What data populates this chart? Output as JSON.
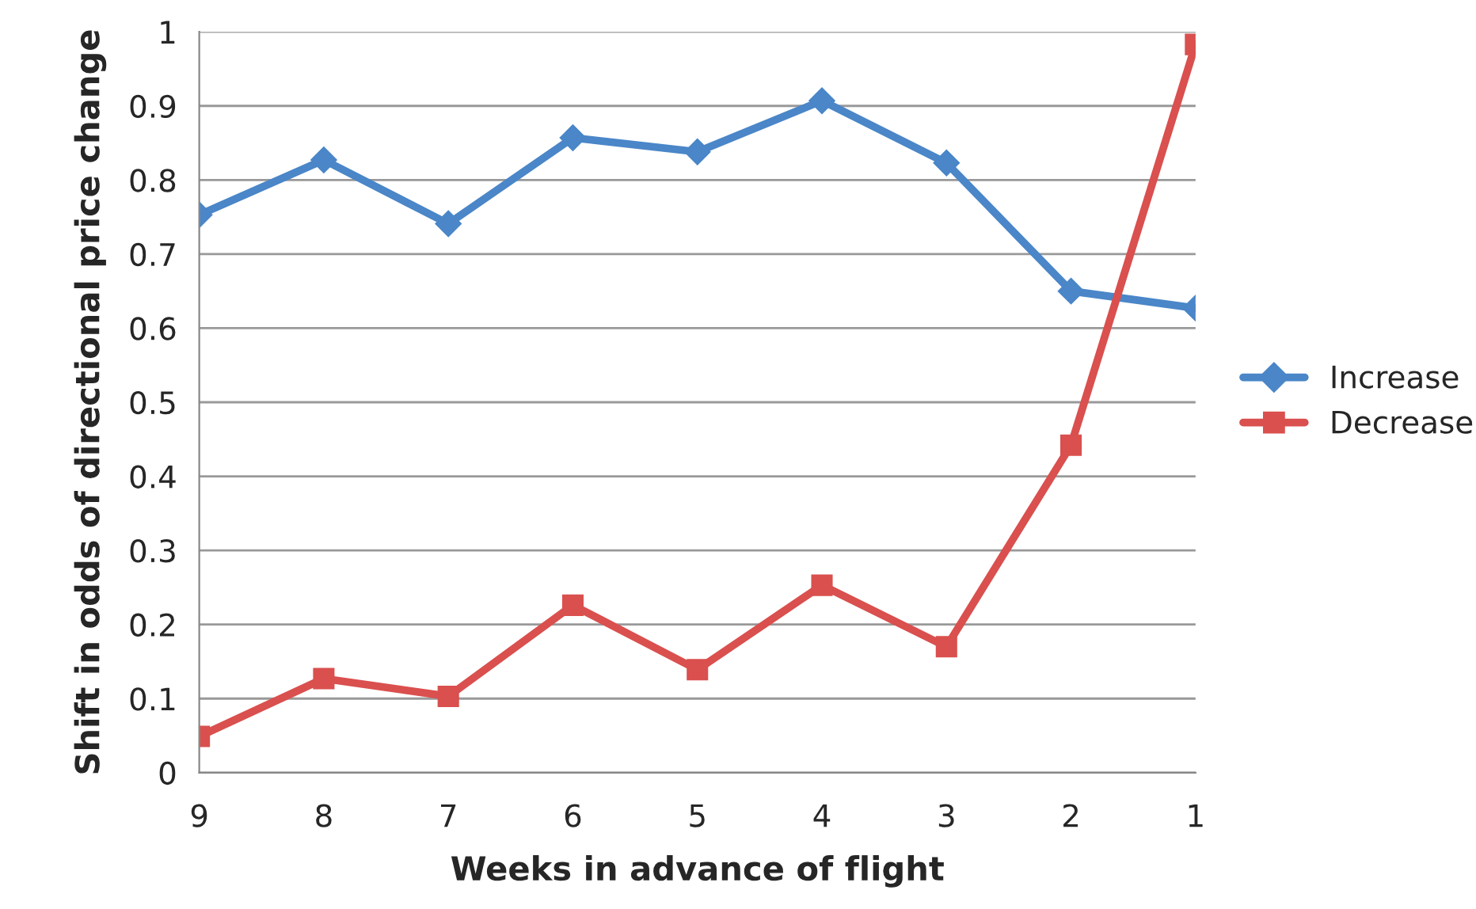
{
  "chart_data": {
    "type": "line",
    "xlabel": "Weeks in advance of flight",
    "ylabel": "Shift in odds of directional price change",
    "categories": [
      "9",
      "8",
      "7",
      "6",
      "5",
      "4",
      "3",
      "2",
      "1"
    ],
    "series": [
      {
        "name": "Increase",
        "color": "#4a86c8",
        "marker": "diamond",
        "values": [
          0.753,
          0.827,
          0.741,
          0.857,
          0.838,
          0.907,
          0.823,
          0.65,
          0.627
        ]
      },
      {
        "name": "Decrease",
        "color": "#d9504e",
        "marker": "square",
        "values": [
          0.049,
          0.127,
          0.103,
          0.226,
          0.139,
          0.253,
          0.17,
          0.442,
          0.983
        ]
      }
    ],
    "ylim": [
      0,
      1
    ],
    "yticks": [
      0,
      0.1,
      0.2,
      0.3,
      0.4,
      0.5,
      0.6,
      0.7,
      0.8,
      0.9,
      1
    ],
    "grid": "y",
    "legend": "right",
    "line_style": "solid"
  }
}
